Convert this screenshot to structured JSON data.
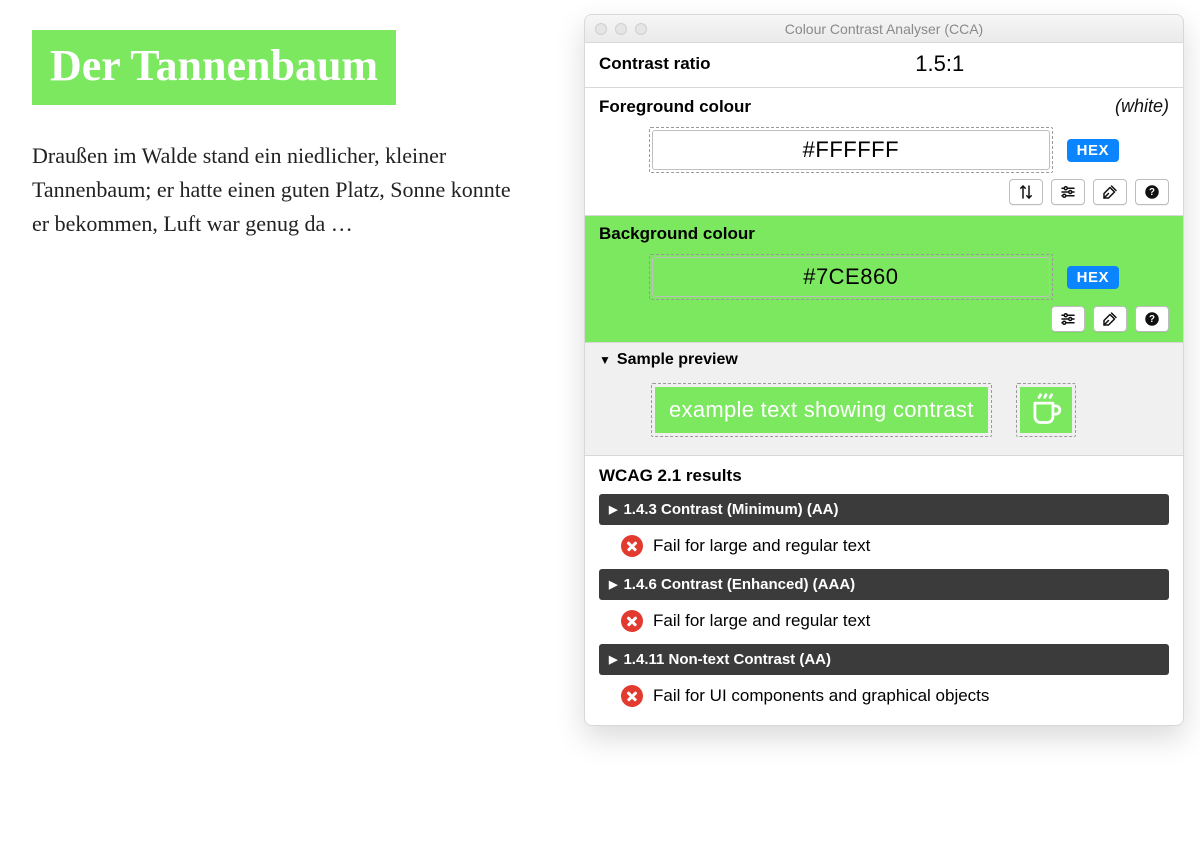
{
  "sample": {
    "title": "Der Tannenbaum",
    "body": "Draußen im Walde stand ein niedlicher, kleiner Tannenbaum; er hatte einen guten Platz, Sonne konnte er bekommen, Luft war genug da …",
    "title_bg": "#7CE860",
    "title_fg": "#ffffff"
  },
  "app": {
    "title": "Colour Contrast Analyser (CCA)",
    "ratio_label": "Contrast ratio",
    "ratio_value": "1.5:1",
    "foreground": {
      "label": "Foreground colour",
      "note": "(white)",
      "value": "#FFFFFF",
      "swatch_bg": "#ffffff",
      "swatch_fg": "#000000",
      "hex_badge": "HEX"
    },
    "background": {
      "label": "Background colour",
      "value": "#7CE860",
      "swatch_bg": "#7CE860",
      "swatch_fg": "#000000",
      "hex_badge": "HEX"
    },
    "preview": {
      "label": "Sample preview",
      "text": "example text showing contrast",
      "fg": "#ffffff",
      "bg": "#7CE860"
    },
    "results": {
      "title": "WCAG 2.1 results",
      "items": [
        {
          "header": "1.4.3 Contrast (Minimum) (AA)",
          "message": "Fail for large and regular text"
        },
        {
          "header": "1.4.6 Contrast (Enhanced) (AAA)",
          "message": "Fail for large and regular text"
        },
        {
          "header": "1.4.11 Non-text Contrast (AA)",
          "message": "Fail for UI components and graphical objects"
        }
      ]
    }
  },
  "colors": {
    "accent_green": "#7CE860",
    "badge_blue": "#0a84ff",
    "fail_red": "#e23a2e",
    "criterion_bg": "#3b3b3b"
  }
}
